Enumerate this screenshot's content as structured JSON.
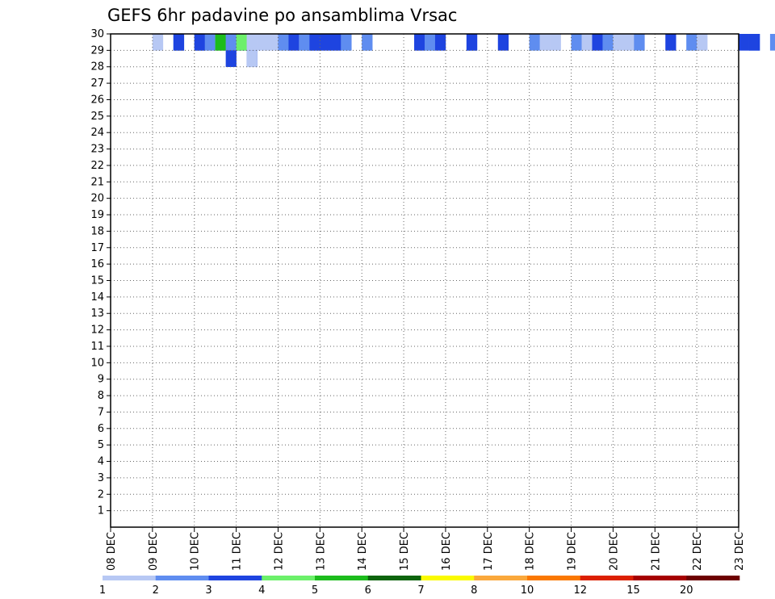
{
  "chart_data": {
    "type": "heatmap",
    "title": "GEFS 6hr padavine po ansamblima Vrsac",
    "xlabel": "",
    "ylabel": "",
    "x_ticks": [
      "08 DEC",
      "09 DEC",
      "10 DEC",
      "11 DEC",
      "12 DEC",
      "13 DEC",
      "14 DEC",
      "15 DEC",
      "16 DEC",
      "17 DEC",
      "18 DEC",
      "19 DEC",
      "20 DEC",
      "21 DEC",
      "22 DEC",
      "23 DEC"
    ],
    "y_ticks": [
      1,
      2,
      3,
      4,
      5,
      6,
      7,
      8,
      9,
      10,
      11,
      12,
      13,
      14,
      15,
      16,
      17,
      18,
      19,
      20,
      21,
      22,
      23,
      24,
      25,
      26,
      27,
      28,
      29,
      30
    ],
    "xlim": [
      "08 DEC",
      "23 DEC"
    ],
    "ylim": [
      0,
      30
    ],
    "time_step_hours": 6,
    "grid": true,
    "legend_position": "bottom",
    "colorbar": {
      "levels": [
        1,
        2,
        3,
        4,
        5,
        6,
        7,
        8,
        10,
        12,
        15,
        20
      ],
      "labels": [
        "1",
        "2",
        "3",
        "4",
        "5",
        "6",
        "7",
        "8",
        "10",
        "12",
        "15",
        "20"
      ],
      "colors": [
        "#b7c8f4",
        "#5f8df0",
        "#1e44e0",
        "#6cf06a",
        "#1cbc1c",
        "#0d640d",
        "#fafa00",
        "#faa83c",
        "#fa7800",
        "#dc2000",
        "#a60000",
        "#6e0000"
      ]
    },
    "cells": [
      {
        "m": 30,
        "r": [
          [
            4,
            0,
            1
          ],
          [
            6,
            1,
            1
          ],
          [
            6,
            2,
            1
          ],
          [
            8,
            1,
            1
          ],
          [
            8,
            2,
            1
          ],
          [
            9,
            1,
            1
          ],
          [
            10,
            3,
            1
          ],
          [
            10,
            4,
            1
          ],
          [
            11,
            1,
            1
          ],
          [
            12,
            2,
            1
          ],
          [
            12,
            3,
            1
          ],
          [
            13,
            0,
            1
          ],
          [
            14,
            0,
            1
          ],
          [
            15,
            0,
            1
          ],
          [
            16,
            1,
            1
          ],
          [
            17,
            2,
            1
          ],
          [
            18,
            0,
            1
          ],
          [
            18,
            1,
            1
          ],
          [
            19,
            1,
            1
          ],
          [
            19,
            2,
            1
          ],
          [
            20,
            2,
            1
          ],
          [
            21,
            2,
            1
          ],
          [
            22,
            1,
            1
          ],
          [
            24,
            0,
            1
          ],
          [
            24,
            1,
            1
          ],
          [
            29,
            2,
            1
          ],
          [
            30,
            0,
            1
          ],
          [
            30,
            1,
            1
          ],
          [
            31,
            2,
            1
          ],
          [
            34,
            1,
            1
          ],
          [
            34,
            2,
            1
          ],
          [
            37,
            2,
            1
          ],
          [
            40,
            1,
            1
          ],
          [
            41,
            0,
            1
          ],
          [
            42,
            0,
            1
          ],
          [
            44,
            1,
            1
          ],
          [
            45,
            0,
            1
          ],
          [
            46,
            2,
            1
          ],
          [
            47,
            1,
            1
          ],
          [
            48,
            0,
            1
          ],
          [
            49,
            0,
            1
          ],
          [
            50,
            1,
            1
          ],
          [
            53,
            2,
            1
          ],
          [
            55,
            1,
            1
          ],
          [
            56,
            0,
            1
          ],
          [
            60,
            2,
            1
          ],
          [
            61,
            1,
            1
          ],
          [
            61,
            2,
            1
          ],
          [
            63,
            1,
            1
          ],
          [
            65,
            0,
            1
          ],
          [
            66,
            0,
            1
          ],
          [
            67,
            1,
            1
          ],
          [
            69,
            1,
            1
          ],
          [
            70,
            1,
            1
          ],
          [
            72,
            0,
            1
          ],
          [
            73,
            1,
            1
          ],
          [
            74,
            1,
            1
          ],
          [
            75,
            0,
            1
          ],
          [
            77,
            1,
            1
          ],
          [
            78,
            1,
            1
          ],
          [
            79,
            2,
            1
          ],
          [
            80,
            1,
            1
          ],
          [
            81,
            0,
            1
          ],
          [
            83,
            1,
            1
          ],
          [
            84,
            0,
            1
          ],
          [
            85,
            2,
            1
          ],
          [
            88,
            1,
            1
          ],
          [
            89,
            2,
            1
          ],
          [
            90,
            0,
            1
          ],
          [
            93,
            1,
            1
          ],
          [
            94,
            0,
            1
          ],
          [
            96,
            1,
            1
          ],
          [
            98,
            0,
            1
          ],
          [
            100,
            1,
            1
          ],
          [
            101,
            2,
            1
          ],
          [
            104,
            1,
            1
          ],
          [
            105,
            0,
            1
          ],
          [
            106,
            2,
            1
          ],
          [
            109,
            0,
            1
          ],
          [
            110,
            1,
            1
          ],
          [
            112,
            2,
            1
          ],
          [
            113,
            1,
            1
          ],
          [
            116,
            0,
            1
          ],
          [
            117,
            0,
            1
          ],
          [
            118,
            2,
            1
          ]
        ]
      },
      {
        "m": 29,
        "r": [
          [
            11,
            2,
            1
          ],
          [
            13,
            2,
            1
          ],
          [
            13,
            0,
            1
          ]
        ]
      }
    ]
  }
}
